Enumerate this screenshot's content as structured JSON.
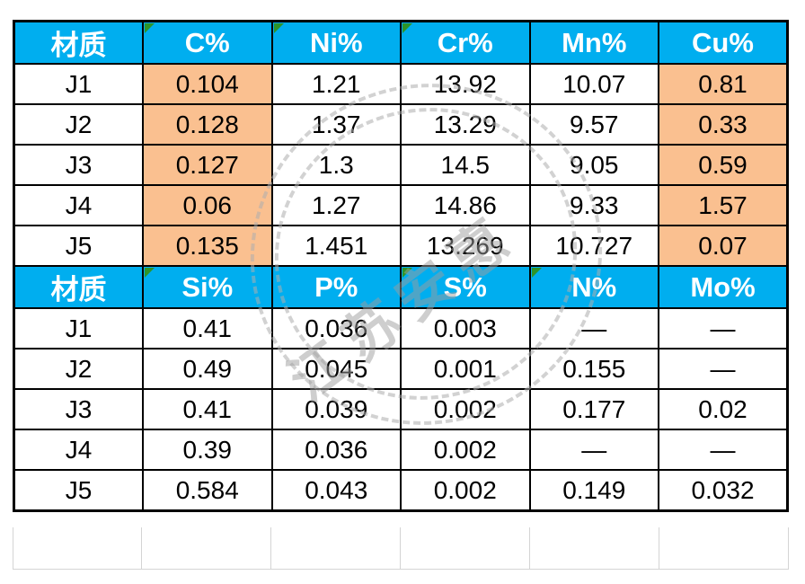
{
  "colors": {
    "header_bg": "#00AEEF",
    "header_text": "#FFFFFF",
    "highlight_bg": "#FAC090",
    "table_border": "#000000",
    "empty_grid": "#D4D4D4",
    "error_triangle_green": "#2E9428",
    "watermark_gray": "#9E9E9E"
  },
  "watermark": {
    "text": "江苏安惠"
  },
  "section1": {
    "headers": [
      "材质",
      "C%",
      "Ni%",
      "Cr%",
      "Mn%",
      "Cu%"
    ],
    "flagged": [
      false,
      true,
      true,
      true,
      false,
      false
    ],
    "highlight_cols": [
      1,
      5
    ],
    "rows": [
      {
        "label": "J1",
        "values": [
          "0.104",
          "1.21",
          "13.92",
          "10.07",
          "0.81"
        ]
      },
      {
        "label": "J2",
        "values": [
          "0.128",
          "1.37",
          "13.29",
          "9.57",
          "0.33"
        ]
      },
      {
        "label": "J3",
        "values": [
          "0.127",
          "1.3",
          "14.5",
          "9.05",
          "0.59"
        ]
      },
      {
        "label": "J4",
        "values": [
          "0.06",
          "1.27",
          "14.86",
          "9.33",
          "1.57"
        ]
      },
      {
        "label": "J5",
        "values": [
          "0.135",
          "1.451",
          "13.269",
          "10.727",
          "0.07"
        ]
      }
    ]
  },
  "section2": {
    "headers": [
      "材质",
      "Si%",
      "P%",
      "S%",
      "N%",
      "Mo%"
    ],
    "flagged": [
      false,
      true,
      false,
      true,
      true,
      false
    ],
    "highlight_cols": [],
    "rows": [
      {
        "label": "J1",
        "values": [
          "0.41",
          "0.036",
          "0.003",
          "—",
          "—"
        ]
      },
      {
        "label": "J2",
        "values": [
          "0.49",
          "0.045",
          "0.001",
          "0.155",
          "—"
        ]
      },
      {
        "label": "J3",
        "values": [
          "0.41",
          "0.039",
          "0.002",
          "0.177",
          "0.02"
        ]
      },
      {
        "label": "J4",
        "values": [
          "0.39",
          "0.036",
          "0.002",
          "—",
          "—"
        ]
      },
      {
        "label": "J5",
        "values": [
          "0.584",
          "0.043",
          "0.002",
          "0.149",
          "0.032"
        ]
      }
    ]
  }
}
